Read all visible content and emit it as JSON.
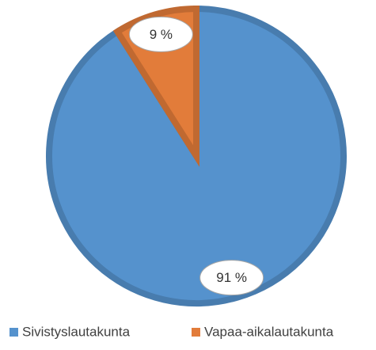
{
  "chart_data": {
    "type": "pie",
    "categories": [
      "Sivistyslautakunta",
      "Vapaa-aikalautakunta"
    ],
    "values": [
      91,
      9
    ],
    "value_labels": [
      "91 %",
      "9 %"
    ],
    "colors": [
      "#5592cd",
      "#e27c3a"
    ],
    "legend": "bottom"
  }
}
